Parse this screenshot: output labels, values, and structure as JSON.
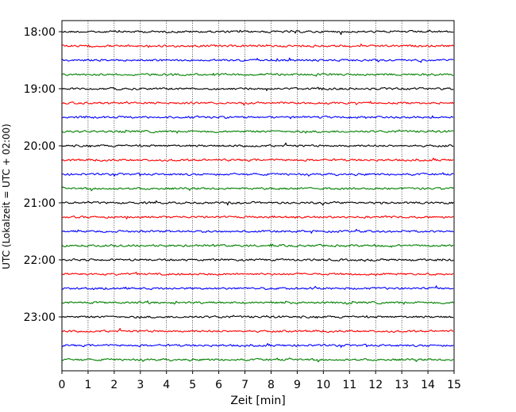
{
  "chart_data": {
    "type": "line",
    "title": "",
    "xlabel": "Zeit  [min]",
    "ylabel": "UTC (Lokalzeit = UTC + 02:00)",
    "xlim": [
      0,
      15
    ],
    "x_ticks": [
      "0",
      "1",
      "2",
      "3",
      "4",
      "5",
      "6",
      "7",
      "8",
      "9",
      "10",
      "11",
      "12",
      "13",
      "14",
      "15"
    ],
    "y_ticks": [
      "18:00",
      "19:00",
      "20:00",
      "21:00",
      "22:00",
      "23:00"
    ],
    "grid": "vertical dotted",
    "trace_start": "18:00",
    "trace_interval_minutes": 15,
    "trace_count": 24,
    "trace_colors": [
      "#000000",
      "#ff0000",
      "#0000ff",
      "#008000"
    ]
  }
}
